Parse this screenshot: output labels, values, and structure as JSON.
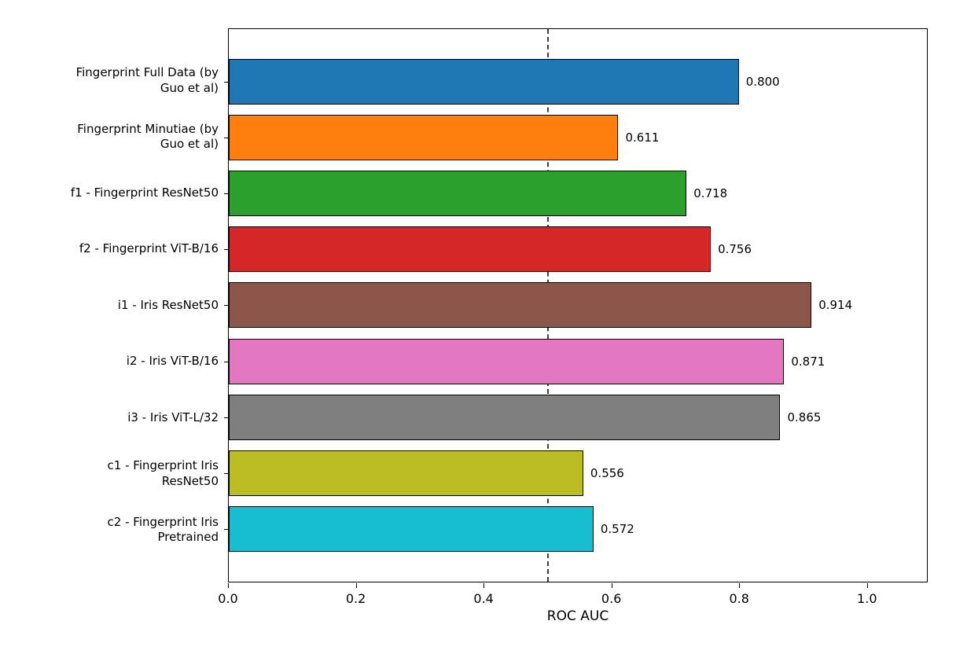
{
  "chart_data": {
    "type": "bar",
    "orientation": "horizontal",
    "title": "",
    "xlabel": "ROC AUC",
    "ylabel": "",
    "grid": false,
    "legend": null,
    "xlim": [
      0,
      1.095
    ],
    "reference_line_x": 0.5,
    "x_ticks": [
      0.0,
      0.2,
      0.4,
      0.6,
      0.8,
      1.0
    ],
    "x_tick_labels": [
      "0.0",
      "0.2",
      "0.4",
      "0.6",
      "0.8",
      "1.0"
    ],
    "categories": [
      "Fingerprint Full Data (by\nGuo et al)",
      "Fingerprint Minutiae (by\nGuo et al)",
      "f1 - Fingerprint ResNet50",
      "f2 - Fingerprint ViT-B/16",
      "i1 - Iris ResNet50",
      "i2 - Iris ViT-B/16",
      "i3 - Iris ViT-L/32",
      "c1 - Fingerprint Iris\nResNet50",
      "c2 - Fingerprint Iris\nPretrained"
    ],
    "values": [
      0.8,
      0.611,
      0.718,
      0.756,
      0.914,
      0.871,
      0.865,
      0.556,
      0.572
    ],
    "value_labels": [
      "0.800",
      "0.611",
      "0.718",
      "0.756",
      "0.914",
      "0.871",
      "0.865",
      "0.556",
      "0.572"
    ],
    "colors": [
      "#1f77b4",
      "#ff7f0e",
      "#2ca02c",
      "#d62728",
      "#8c564b",
      "#e377c2",
      "#7f7f7f",
      "#bcbd22",
      "#17becf"
    ],
    "bar_edge_color": "#000000",
    "reference_line_color": "#3b3b3b"
  }
}
